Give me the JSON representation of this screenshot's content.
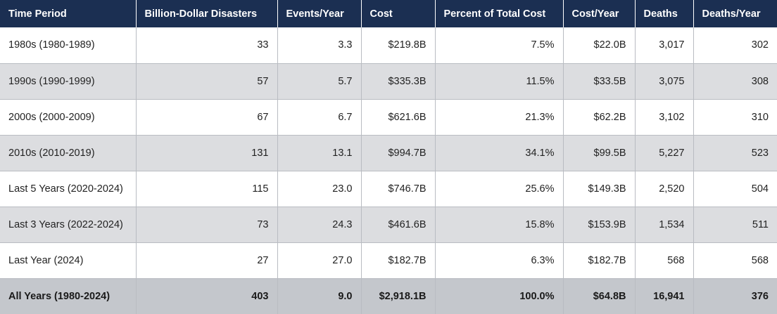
{
  "table": {
    "headers": [
      "Time Period",
      "Billion-Dollar Disasters",
      "Events/Year",
      "Cost",
      "Percent of Total Cost",
      "Cost/Year",
      "Deaths",
      "Deaths/Year"
    ],
    "rows": [
      [
        "1980s (1980-1989)",
        "33",
        "3.3",
        "$219.8B",
        "7.5%",
        "$22.0B",
        "3,017",
        "302"
      ],
      [
        "1990s (1990-1999)",
        "57",
        "5.7",
        "$335.3B",
        "11.5%",
        "$33.5B",
        "3,075",
        "308"
      ],
      [
        "2000s (2000-2009)",
        "67",
        "6.7",
        "$621.6B",
        "21.3%",
        "$62.2B",
        "3,102",
        "310"
      ],
      [
        "2010s (2010-2019)",
        "131",
        "13.1",
        "$994.7B",
        "34.1%",
        "$99.5B",
        "5,227",
        "523"
      ],
      [
        "Last 5 Years (2020-2024)",
        "115",
        "23.0",
        "$746.7B",
        "25.6%",
        "$149.3B",
        "2,520",
        "504"
      ],
      [
        "Last 3 Years (2022-2024)",
        "73",
        "24.3",
        "$461.6B",
        "15.8%",
        "$153.9B",
        "1,534",
        "511"
      ],
      [
        "Last Year (2024)",
        "27",
        "27.0",
        "$182.7B",
        "6.3%",
        "$182.7B",
        "568",
        "568"
      ],
      [
        "All Years (1980-2024)",
        "403",
        "9.0",
        "$2,918.1B",
        "100.0%",
        "$64.8B",
        "16,941",
        "376"
      ]
    ]
  },
  "colors": {
    "header_bg": "#1b2f52",
    "header_text": "#ffffff",
    "row_alt_bg": "#dcdde0",
    "total_row_bg": "#c4c7cc",
    "grid_line": "#b9bcc2"
  }
}
